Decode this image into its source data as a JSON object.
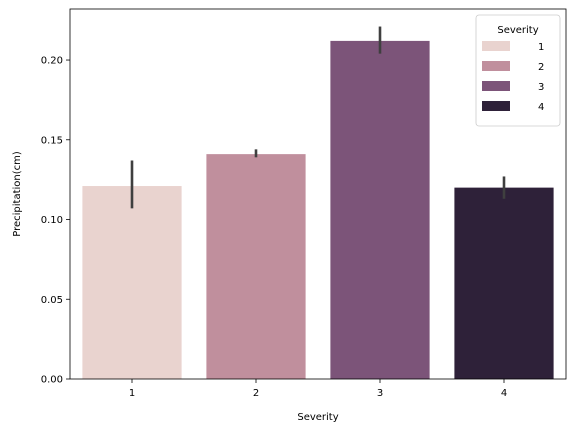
{
  "chart_data": {
    "type": "bar",
    "xlabel": "Severity",
    "ylabel": "Precipitation(cm)",
    "categories": [
      "1",
      "2",
      "3",
      "4"
    ],
    "values": [
      0.121,
      0.141,
      0.212,
      0.12
    ],
    "error_bars": [
      {
        "low": 0.107,
        "high": 0.137
      },
      {
        "low": 0.139,
        "high": 0.144
      },
      {
        "low": 0.204,
        "high": 0.221
      },
      {
        "low": 0.113,
        "high": 0.127
      }
    ],
    "colors": [
      "#e9d3cf",
      "#c08f9d",
      "#7c5479",
      "#2e2139"
    ],
    "ylim": [
      0,
      0.232
    ],
    "yticks": [
      0.0,
      0.05,
      0.1,
      0.15,
      0.2
    ],
    "ytick_labels": [
      "0.00",
      "0.05",
      "0.10",
      "0.15",
      "0.20"
    ],
    "error_color": "#3f3f3f",
    "grid": false,
    "legend": {
      "title": "Severity",
      "placement": "top-right",
      "entries": [
        "1",
        "2",
        "3",
        "4"
      ]
    }
  }
}
